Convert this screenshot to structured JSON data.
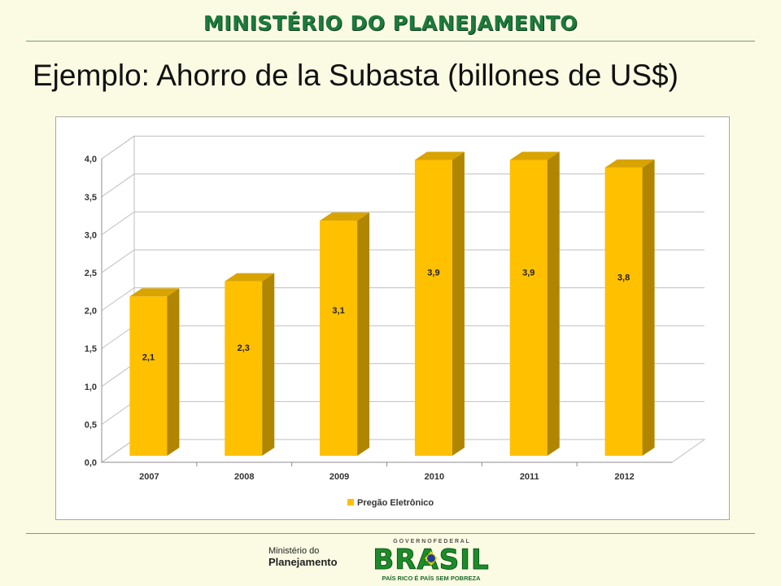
{
  "header": {
    "title": "MINISTÉRIO DO PLANEJAMENTO"
  },
  "slide": {
    "title": "Ejemplo: Ahorro de la Subasta (billones de US$)"
  },
  "chart_data": {
    "type": "bar",
    "categories": [
      "2007",
      "2008",
      "2009",
      "2010",
      "2011",
      "2012"
    ],
    "series": [
      {
        "name": "Pregão Eletrônico",
        "values": [
          2.1,
          2.3,
          3.1,
          3.9,
          3.9,
          3.8
        ],
        "labels": [
          "2,1",
          "2,3",
          "3,1",
          "3,9",
          "3,9",
          "3,8"
        ]
      }
    ],
    "yticks": [
      "0,0",
      "0,5",
      "1,0",
      "1,5",
      "2,0",
      "2,5",
      "3,0",
      "3,5",
      "4,0"
    ],
    "ylim": [
      0,
      4
    ],
    "title": "",
    "xlabel": "",
    "ylabel": "",
    "grid": true,
    "legend": "bottom",
    "bar_color": "#ffc000",
    "style": "3d-column"
  },
  "footer": {
    "ministry_line1": "Ministério do",
    "ministry_line2": "Planejamento",
    "gov_top": "G O V E R N O   F E D E R A L",
    "brasil": "BRASIL",
    "slogan": "PAÍS RICO É PAÍS SEM POBREZA"
  },
  "colors": {
    "header_green": "#1d7a3c",
    "background": "#fbfbe3",
    "bar_front": "#ffc000",
    "bar_side": "#b08600",
    "bar_top": "#d9a300"
  }
}
